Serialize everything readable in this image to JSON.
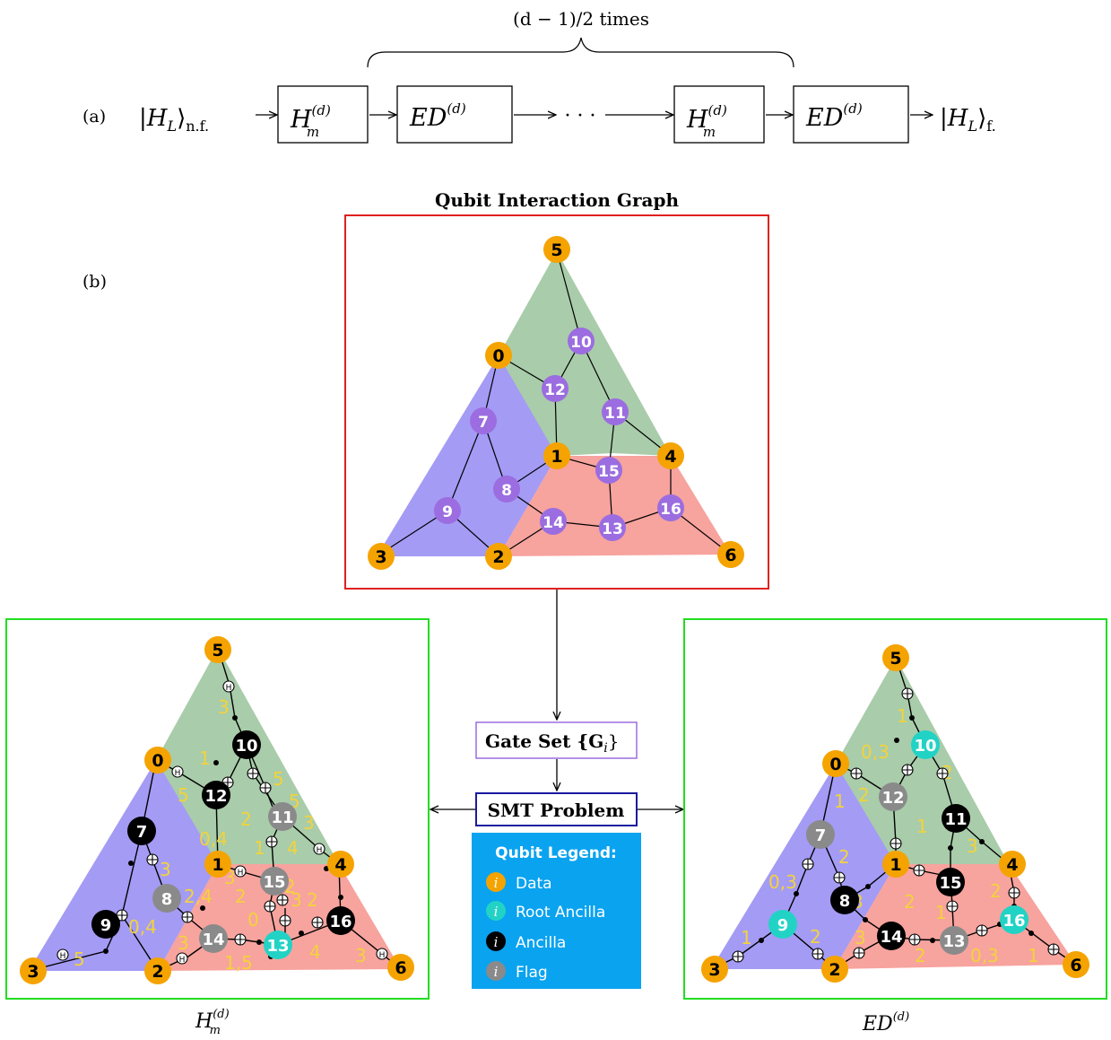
{
  "panel_a": {
    "label": "(a)",
    "brace_text": "(d − 1)/2 times",
    "input_state": "|H",
    "input_sub": "L",
    "input_suffix": "⟩",
    "input_sub2": "n.f.",
    "box_h": "H",
    "box_h_sup": "(d)",
    "box_h_sub": "m",
    "box_ed": "ED",
    "box_ed_sup": "(d)",
    "dots": "· · ·",
    "output_state": "|H",
    "output_sub": "L",
    "output_suffix": "⟩",
    "output_sub2": "f."
  },
  "panel_b": {
    "label": "(b)",
    "graph_title": "Qubit Interaction Graph",
    "gate_set_label": "Gate Set {G",
    "gate_set_sub": "i",
    "gate_set_close": "}",
    "smt_label": "SMT Problem",
    "left_caption": "H",
    "left_caption_sup": "(d)",
    "left_caption_sub": "m",
    "right_caption": "ED",
    "right_caption_sup": "(d)"
  },
  "legend": {
    "title": "Qubit Legend:",
    "symbol": "i",
    "items": [
      "Data",
      "Root Ancilla",
      "Ancilla",
      "Flag"
    ]
  },
  "colors": {
    "data": "#f5a300",
    "root_ancilla": "#22d3c5",
    "ancilla": "#000000",
    "flag": "#8a8a8a",
    "interaction": "#9b6de0",
    "green_region": "#a9ccaa",
    "blue_region": "#a49bf5",
    "red_region": "#f7a39e",
    "label_yellow": "#f2d33c",
    "legend_bg": "#0aa3f0",
    "graph_frame": "#e02020",
    "result_frame": "#22dd22",
    "gate_frame": "#9b6de0",
    "smt_frame": "#1a1aa0"
  },
  "top_graph": {
    "data_ids": [
      "5",
      "0",
      "1",
      "4",
      "3",
      "2",
      "6"
    ],
    "interaction_ids": [
      "10",
      "12",
      "11",
      "7",
      "15",
      "8",
      "16",
      "9",
      "14",
      "13"
    ]
  },
  "left_graph": {
    "data_ids": [
      "5",
      "0",
      "1",
      "4",
      "3",
      "2",
      "6"
    ],
    "ancilla_ids": [
      "10",
      "12",
      "7",
      "9",
      "16"
    ],
    "flag_ids": [
      "11",
      "8",
      "15",
      "14"
    ],
    "root_ids": [
      "13"
    ],
    "step_labels": [
      "3",
      "1",
      "5",
      "5",
      "2",
      "0,4",
      "3",
      "1",
      "4",
      "3",
      "3",
      "2,4",
      "2",
      "0,4",
      "5",
      "3",
      "2",
      "0",
      "3",
      "2",
      "1,5",
      "4",
      "3",
      "5"
    ],
    "gate_h": "H"
  },
  "right_graph": {
    "data_ids": [
      "5",
      "0",
      "1",
      "4",
      "3",
      "2",
      "6"
    ],
    "ancilla_ids": [
      "11",
      "8",
      "15",
      "14"
    ],
    "flag_ids": [
      "12",
      "7",
      "13"
    ],
    "root_ids": [
      "10",
      "9",
      "16"
    ],
    "step_labels": [
      "1",
      "0,3",
      "2",
      "2",
      "1",
      "1",
      "3",
      "2",
      "0,3",
      "3",
      "2",
      "2",
      "1",
      "1",
      "2",
      "3",
      "2",
      "0,3",
      "1"
    ]
  }
}
